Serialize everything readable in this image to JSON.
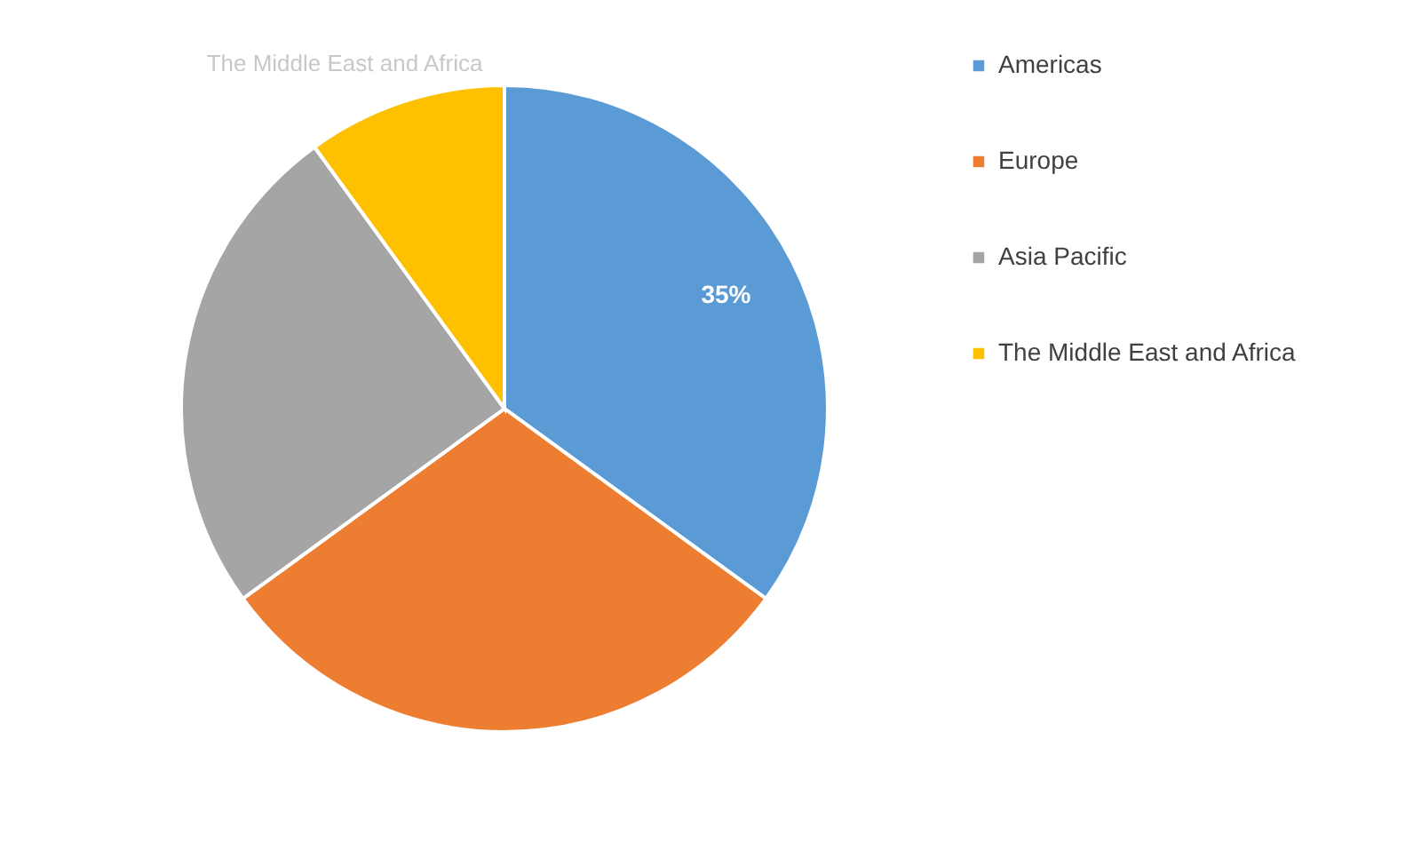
{
  "chart_data": {
    "type": "pie",
    "categories": [
      "Americas",
      "Europe",
      "Asia Pacific",
      "The Middle East and Africa"
    ],
    "values": [
      35,
      30,
      25,
      10
    ],
    "value_labels": [
      "35%",
      null,
      null,
      null
    ],
    "colors": [
      "#5b9bd5",
      "#ed7d31",
      "#a5a5a5",
      "#ffc000"
    ],
    "annotations": [
      "The Middle East and Africa"
    ],
    "legend": "right"
  }
}
